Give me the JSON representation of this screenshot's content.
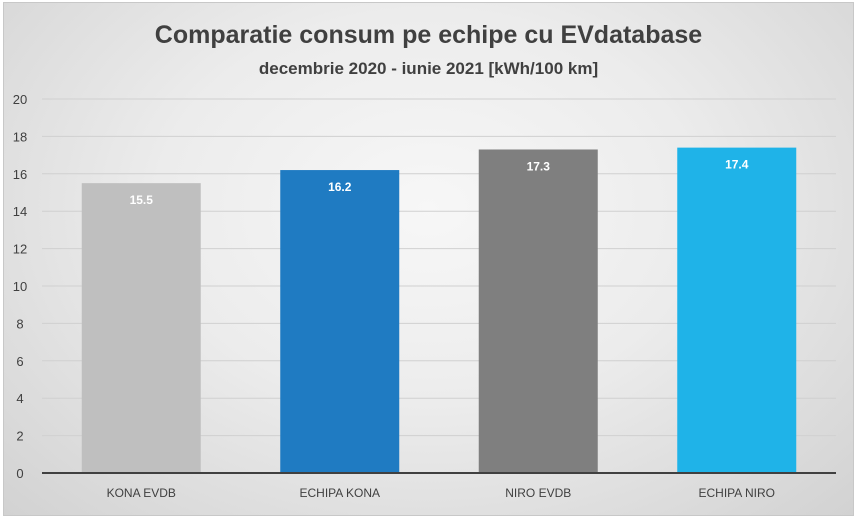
{
  "chart_data": {
    "type": "bar",
    "title": "Comparatie consum pe echipe cu EVdatabase",
    "subtitle": "decembrie 2020 - iunie 2021 [kWh/100 km]",
    "categories": [
      "KONA EVDB",
      "ECHIPA KONA",
      "NIRO EVDB",
      "ECHIPA NIRO"
    ],
    "values": [
      15.5,
      16.2,
      17.3,
      17.4
    ],
    "data_labels": [
      "15.5",
      "16.2",
      "17.3",
      "17.4"
    ],
    "colors": [
      "#bfbfbf",
      "#1f7bc2",
      "#7f7f7f",
      "#1fb3e8"
    ],
    "ylim": [
      0,
      20
    ],
    "yticks": [
      0,
      2,
      4,
      6,
      8,
      10,
      12,
      14,
      16,
      18,
      20
    ],
    "grid": true,
    "legend": "none",
    "xlabel": "",
    "ylabel": ""
  }
}
